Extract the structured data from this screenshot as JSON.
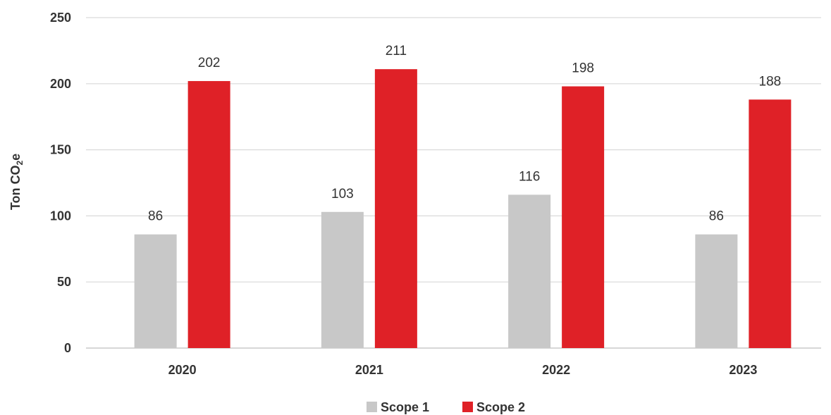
{
  "chart_data": {
    "type": "bar",
    "categories": [
      "2020",
      "2021",
      "2022",
      "2023"
    ],
    "series": [
      {
        "name": "Scope 1",
        "color": "#c8c8c8",
        "values": [
          86,
          103,
          116,
          86
        ]
      },
      {
        "name": "Scope 2",
        "color": "#df2127",
        "values": [
          202,
          211,
          198,
          188
        ]
      }
    ],
    "ylabel_main": "Ton CO",
    "ylabel_subscript": "2",
    "ylabel_suffix": "e",
    "ylim": [
      0,
      250
    ],
    "yticks": [
      0,
      50,
      100,
      150,
      200,
      250
    ],
    "grid": true,
    "legend_position": "bottom"
  }
}
